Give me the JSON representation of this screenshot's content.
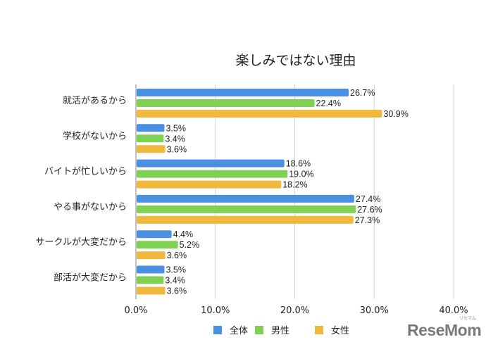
{
  "chart_data": {
    "type": "bar",
    "orientation": "horizontal",
    "title": "楽しみではない理由",
    "categories": [
      "就活があるから",
      "学校がないから",
      "バイトが忙しいから",
      "やる事がないから",
      "サークルが大変だから",
      "部活が大変だから"
    ],
    "series": [
      {
        "name": "全体",
        "color": "#4a90e2",
        "values": [
          26.7,
          3.5,
          18.6,
          27.4,
          4.4,
          3.5
        ],
        "labels": [
          "26.7%",
          "3.5%",
          "18.6%",
          "27.4%",
          "4.4%",
          "3.5%"
        ]
      },
      {
        "name": "男性",
        "color": "#7ed152",
        "values": [
          22.4,
          3.4,
          19.0,
          27.6,
          5.2,
          3.4
        ],
        "labels": [
          "22.4%",
          "3.4%",
          "19.0%",
          "27.6%",
          "5.2%",
          "3.4%"
        ]
      },
      {
        "name": "女性",
        "color": "#f0b93d",
        "values": [
          30.9,
          3.6,
          18.2,
          27.3,
          3.6,
          3.6
        ],
        "labels": [
          "30.9%",
          "3.6%",
          "18.2%",
          "27.3%",
          "3.6%",
          "3.6%"
        ]
      }
    ],
    "xlim": [
      0,
      40
    ],
    "xticks": [
      0,
      10,
      20,
      30,
      40
    ],
    "xtick_labels": [
      "0.0%",
      "10.0%",
      "20.0%",
      "30.0%",
      "40.0%"
    ],
    "grid": true,
    "legend_position": "bottom"
  },
  "logo": {
    "text": "ReseMom",
    "sub": "リセマム"
  }
}
